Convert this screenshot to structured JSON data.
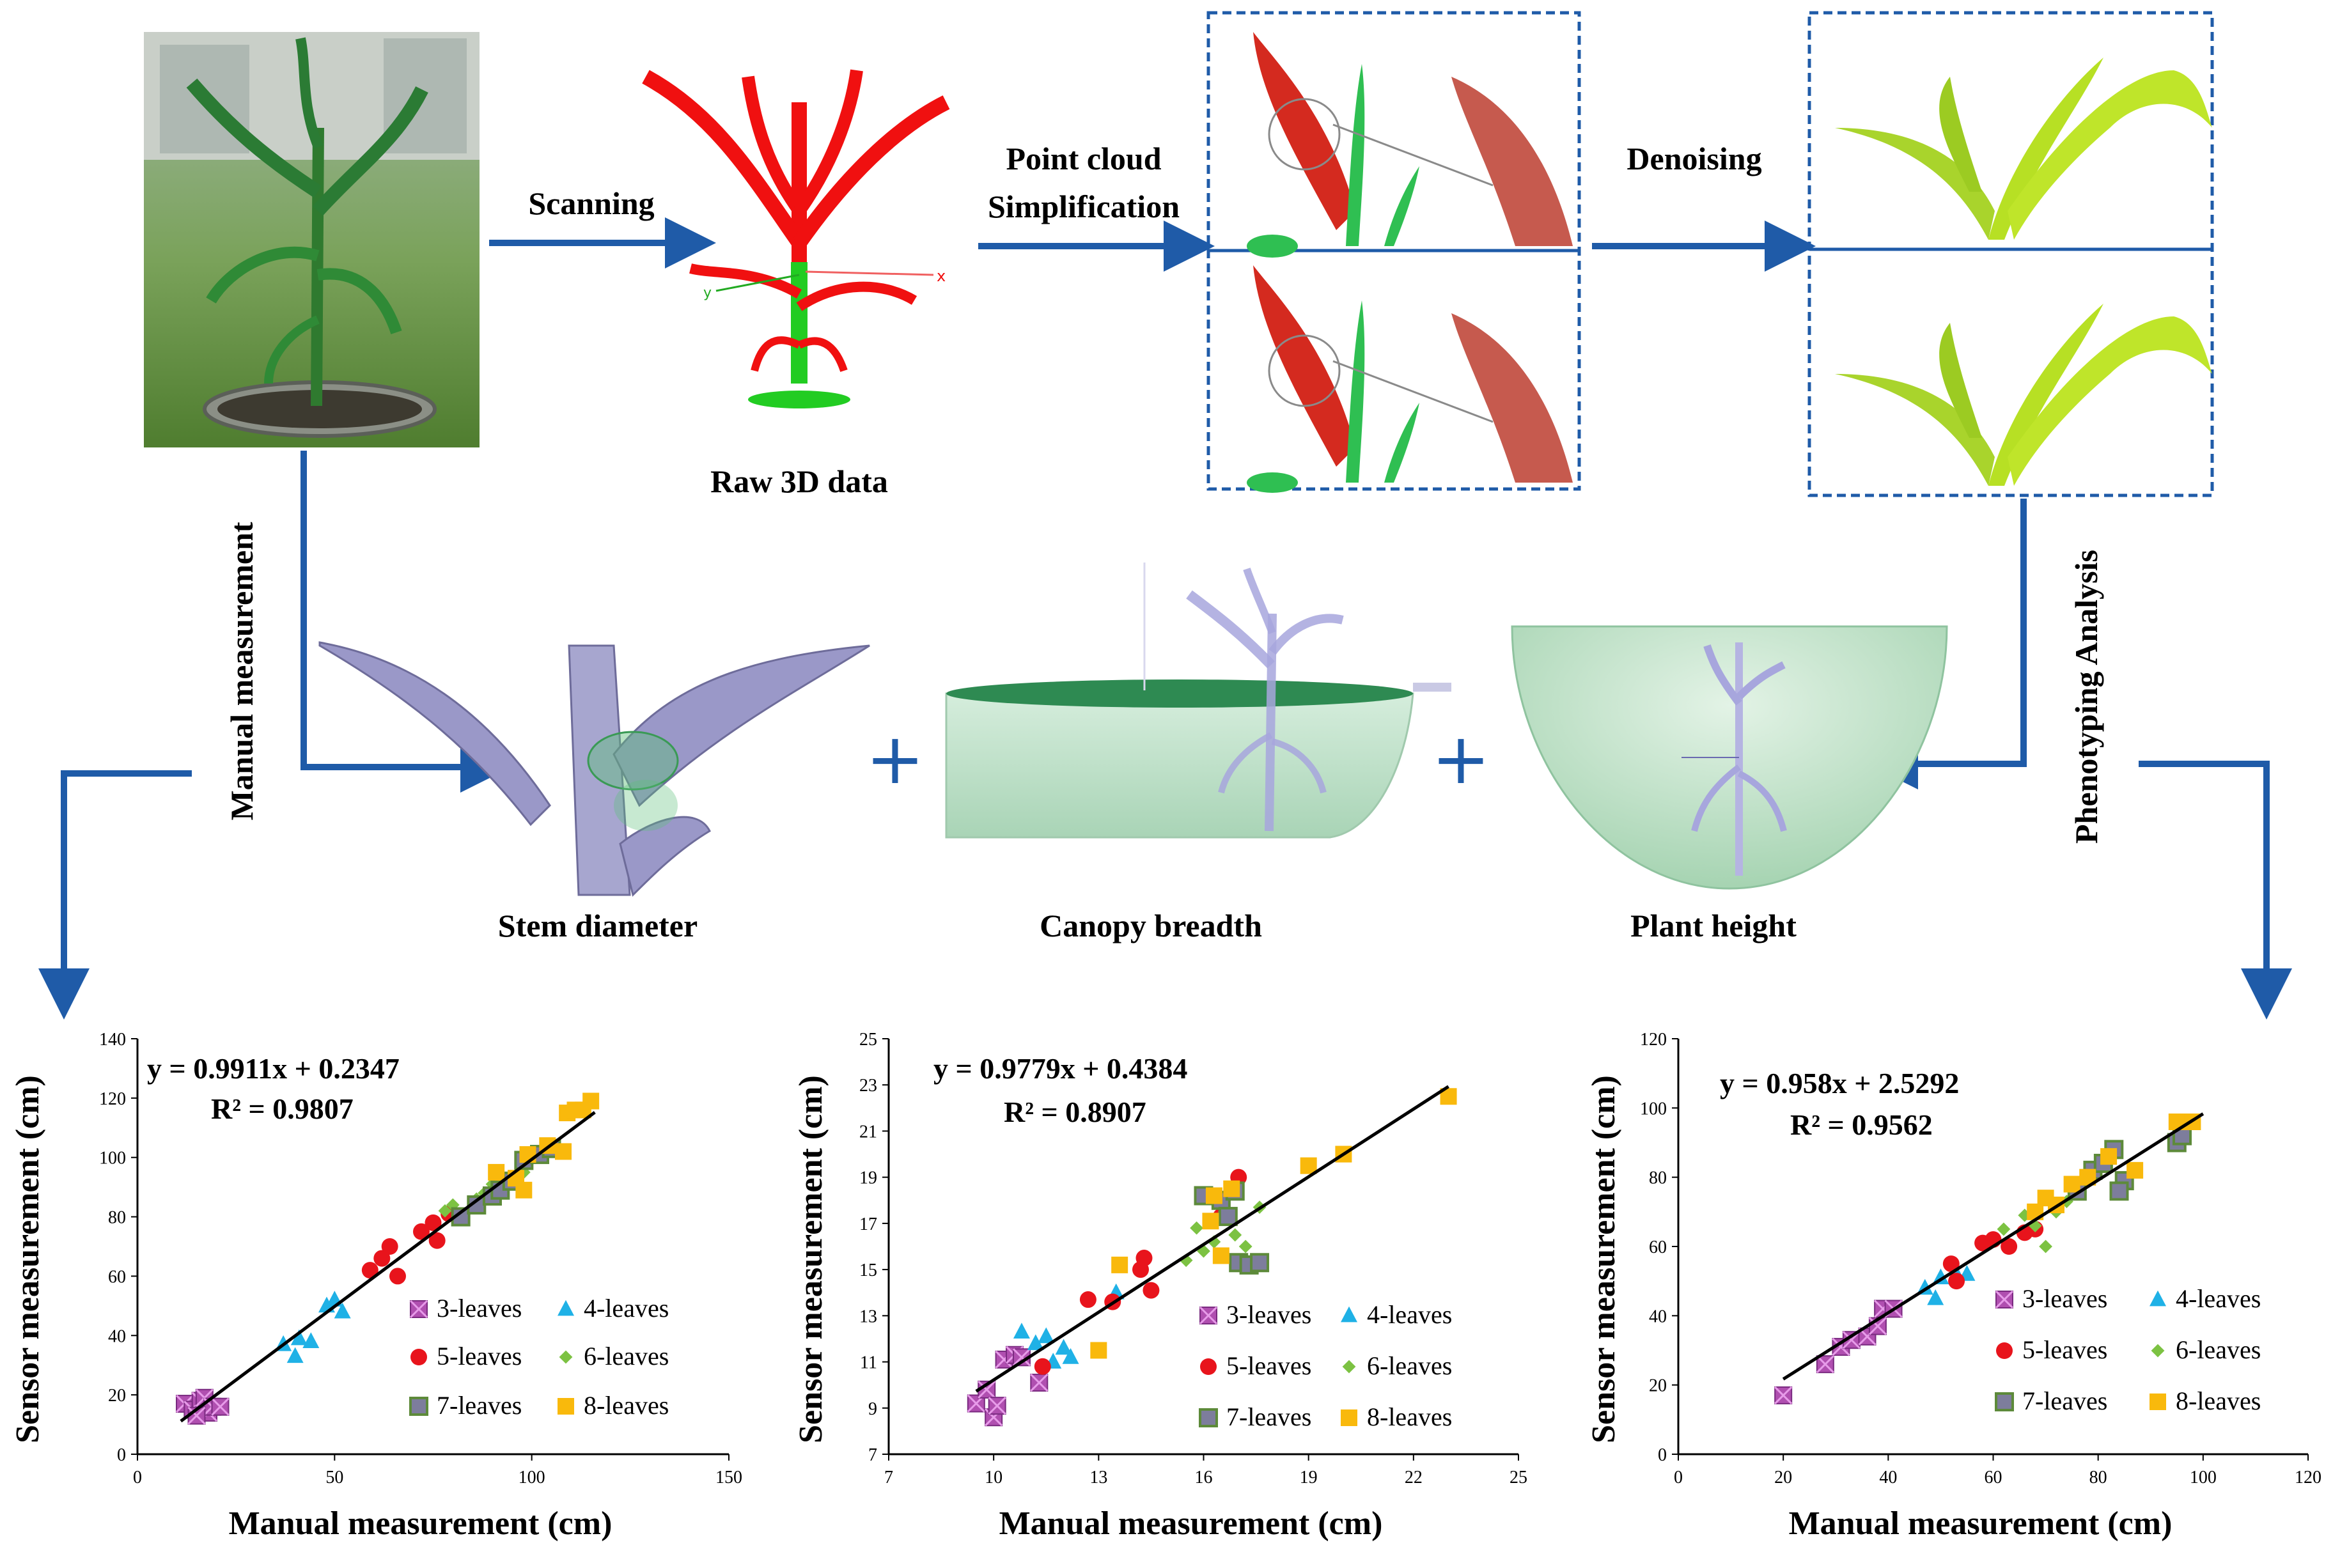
{
  "colors": {
    "arrow": "#1f5ba8",
    "plant_red": "#f01010",
    "plant_green": "#22cc22",
    "leaf_yellow": "#b7e024",
    "stem_gray": "#9a98c8",
    "dish_green": "#bfe3cc",
    "series": {
      "3-leaves": "#b04fb0",
      "4-leaves": "#1fb1e6",
      "5-leaves": "#e8141c",
      "6-leaves": "#7cc242",
      "7-leaves": "#7d7d9c",
      "8-leaves": "#f9b90c"
    }
  },
  "workflow": {
    "step_scanning": "Scanning",
    "caption_raw": "Raw 3D data",
    "step_simplification_line1": "Point cloud",
    "step_simplification_line2": "Simplification",
    "step_denoising": "Denoising",
    "side_manual": "Manual measurement",
    "side_phenotyping": "Phenotyping Analysis",
    "caption_stem": "Stem diameter",
    "caption_canopy": "Canopy breadth",
    "caption_height": "Plant height",
    "plus": "+",
    "axis_x": "x",
    "axis_y": "y"
  },
  "chart_data": [
    {
      "type": "scatter",
      "title": "",
      "xlabel": "Manual measurement (cm)",
      "ylabel": "Sensor measurement (cm)",
      "xlim": [
        0,
        150
      ],
      "ylim": [
        0,
        140
      ],
      "xticks": [
        "0",
        "50",
        "100",
        "150"
      ],
      "yticks": [
        "0",
        "20",
        "40",
        "60",
        "80",
        "100",
        "120",
        "140"
      ],
      "equation": "y = 0.9911x + 0.2347",
      "r2": "R² = 0.9807",
      "trend": {
        "slope": 0.9911,
        "intercept": 0.2347,
        "x_range": [
          11,
          116
        ]
      },
      "legend": [
        "3-leaves",
        "4-leaves",
        "5-leaves",
        "6-leaves",
        "7-leaves",
        "8-leaves"
      ],
      "series": [
        {
          "name": "3-leaves",
          "points": [
            [
              12,
              17
            ],
            [
              14,
              15
            ],
            [
              16,
              18
            ],
            [
              17,
              19
            ],
            [
              18,
              14
            ],
            [
              19,
              16
            ],
            [
              21,
              16
            ],
            [
              15,
              13
            ]
          ]
        },
        {
          "name": "4-leaves",
          "points": [
            [
              37,
              37
            ],
            [
              40,
              33
            ],
            [
              41,
              39
            ],
            [
              44,
              38
            ],
            [
              48,
              50
            ],
            [
              50,
              52
            ],
            [
              52,
              48
            ]
          ]
        },
        {
          "name": "5-leaves",
          "points": [
            [
              59,
              62
            ],
            [
              62,
              66
            ],
            [
              64,
              70
            ],
            [
              66,
              60
            ],
            [
              72,
              75
            ],
            [
              75,
              78
            ],
            [
              76,
              72
            ],
            [
              79,
              81
            ]
          ]
        },
        {
          "name": "6-leaves",
          "points": [
            [
              78,
              82
            ],
            [
              80,
              84
            ],
            [
              82,
              80
            ],
            [
              86,
              86
            ],
            [
              88,
              88
            ],
            [
              90,
              91
            ],
            [
              95,
              92
            ],
            [
              98,
              95
            ]
          ]
        },
        {
          "name": "7-leaves",
          "points": [
            [
              82,
              80
            ],
            [
              86,
              84
            ],
            [
              90,
              87
            ],
            [
              92,
              89
            ],
            [
              95,
              92
            ],
            [
              98,
              99
            ],
            [
              102,
              101
            ],
            [
              105,
              103
            ]
          ]
        },
        {
          "name": "8-leaves",
          "points": [
            [
              91,
              95
            ],
            [
              96,
              93
            ],
            [
              98,
              89
            ],
            [
              99,
              101
            ],
            [
              104,
              104
            ],
            [
              108,
              102
            ],
            [
              109,
              115
            ],
            [
              111,
              116
            ],
            [
              113,
              116
            ],
            [
              115,
              119
            ]
          ]
        }
      ]
    },
    {
      "type": "scatter",
      "title": "",
      "xlabel": "Manual measurement (cm)",
      "ylabel": "Sensor measurement (cm)",
      "xlim": [
        7,
        25
      ],
      "ylim": [
        7,
        25
      ],
      "xticks": [
        "7",
        "10",
        "13",
        "16",
        "19",
        "22",
        "25"
      ],
      "yticks": [
        "7",
        "9",
        "11",
        "13",
        "15",
        "17",
        "19",
        "21",
        "23",
        "25"
      ],
      "equation": "y = 0.9779x + 0.4384",
      "r2": "R² = 0.8907",
      "trend": {
        "slope": 0.9779,
        "intercept": 0.4384,
        "x_range": [
          9.5,
          23
        ]
      },
      "legend": [
        "3-leaves",
        "4-leaves",
        "5-leaves",
        "6-leaves",
        "7-leaves",
        "8-leaves"
      ],
      "series": [
        {
          "name": "3-leaves",
          "points": [
            [
              9.5,
              9.2
            ],
            [
              9.8,
              9.8
            ],
            [
              10,
              8.6
            ],
            [
              10.1,
              9.1
            ],
            [
              10.3,
              11.1
            ],
            [
              10.6,
              11.3
            ],
            [
              10.8,
              11.2
            ],
            [
              11.3,
              10.1
            ]
          ]
        },
        {
          "name": "4-leaves",
          "points": [
            [
              10.8,
              12.3
            ],
            [
              11.2,
              11.8
            ],
            [
              11.5,
              12.1
            ],
            [
              11.7,
              11
            ],
            [
              12,
              11.6
            ],
            [
              12.2,
              11.2
            ],
            [
              13.5,
              14
            ]
          ]
        },
        {
          "name": "5-leaves",
          "points": [
            [
              11.4,
              10.8
            ],
            [
              12.7,
              13.7
            ],
            [
              13.4,
              13.6
            ],
            [
              14.2,
              15
            ],
            [
              14.3,
              15.5
            ],
            [
              14.5,
              14.1
            ],
            [
              17,
              19
            ],
            [
              16.5,
              17.3
            ]
          ]
        },
        {
          "name": "6-leaves",
          "points": [
            [
              15.5,
              15.4
            ],
            [
              15.8,
              16.8
            ],
            [
              16,
              15.8
            ],
            [
              16.3,
              16.2
            ],
            [
              16.6,
              17.5
            ],
            [
              16.9,
              16.5
            ],
            [
              17.2,
              16
            ],
            [
              17.6,
              17.7
            ]
          ]
        },
        {
          "name": "7-leaves",
          "points": [
            [
              16,
              18.2
            ],
            [
              16.5,
              18
            ],
            [
              16.7,
              17.3
            ],
            [
              16.9,
              18.4
            ],
            [
              17,
              15.3
            ],
            [
              17.3,
              15.2
            ],
            [
              17.6,
              15.3
            ]
          ]
        },
        {
          "name": "8-leaves",
          "points": [
            [
              13,
              11.5
            ],
            [
              13.6,
              15.2
            ],
            [
              16.2,
              17.1
            ],
            [
              16.5,
              15.6
            ],
            [
              16.8,
              18.5
            ],
            [
              19,
              19.5
            ],
            [
              20,
              20
            ],
            [
              23,
              22.5
            ],
            [
              16.3,
              18.2
            ]
          ]
        }
      ]
    },
    {
      "type": "scatter",
      "title": "",
      "xlabel": "Manual measurement (cm)",
      "ylabel": "Sensor measurement (cm)",
      "xlim": [
        0,
        120
      ],
      "ylim": [
        0,
        120
      ],
      "xticks": [
        "0",
        "20",
        "40",
        "60",
        "80",
        "100",
        "120"
      ],
      "yticks": [
        "0",
        "20",
        "40",
        "60",
        "80",
        "100",
        "120"
      ],
      "equation": "y = 0.958x + 2.5292",
      "r2": "R² = 0.9562",
      "trend": {
        "slope": 0.958,
        "intercept": 2.5292,
        "x_range": [
          20,
          100
        ]
      },
      "legend": [
        "3-leaves",
        "4-leaves",
        "5-leaves",
        "6-leaves",
        "7-leaves",
        "8-leaves"
      ],
      "series": [
        {
          "name": "3-leaves",
          "points": [
            [
              20,
              17
            ],
            [
              28,
              26
            ],
            [
              31,
              31
            ],
            [
              33,
              33
            ],
            [
              36,
              34
            ],
            [
              38,
              37
            ],
            [
              39,
              42
            ],
            [
              41,
              42
            ]
          ]
        },
        {
          "name": "4-leaves",
          "points": [
            [
              47,
              48
            ],
            [
              49,
              45
            ],
            [
              50,
              51
            ],
            [
              53,
              52
            ],
            [
              55,
              52
            ]
          ]
        },
        {
          "name": "5-leaves",
          "points": [
            [
              52,
              55
            ],
            [
              53,
              50
            ],
            [
              58,
              61
            ],
            [
              60,
              62
            ],
            [
              63,
              60
            ],
            [
              66,
              64
            ],
            [
              68,
              65
            ]
          ]
        },
        {
          "name": "6-leaves",
          "points": [
            [
              62,
              65
            ],
            [
              66,
              69
            ],
            [
              68,
              66
            ],
            [
              70,
              60
            ],
            [
              72,
              70
            ],
            [
              74,
              73
            ]
          ]
        },
        {
          "name": "7-leaves",
          "points": [
            [
              76,
              76
            ],
            [
              79,
              82
            ],
            [
              81,
              84
            ],
            [
              83,
              88
            ],
            [
              85,
              79
            ],
            [
              84,
              76
            ],
            [
              95,
              90
            ],
            [
              96,
              92
            ]
          ]
        },
        {
          "name": "8-leaves",
          "points": [
            [
              68,
              70
            ],
            [
              70,
              74
            ],
            [
              72,
              72
            ],
            [
              75,
              78
            ],
            [
              78,
              80
            ],
            [
              82,
              86
            ],
            [
              87,
              82
            ],
            [
              95,
              96
            ],
            [
              98,
              96
            ]
          ]
        }
      ]
    }
  ]
}
